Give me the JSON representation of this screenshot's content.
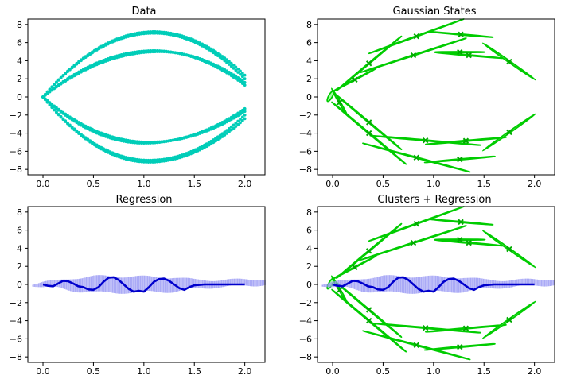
{
  "chart_data": [
    {
      "type": "scatter",
      "title": "Data",
      "xlabel": "",
      "ylabel": "",
      "xlim": [
        -0.15,
        2.2
      ],
      "ylim": [
        -8.6,
        8.6
      ],
      "xticks": [
        0.0,
        0.5,
        1.0,
        1.5,
        2.0
      ],
      "yticks": [
        -8,
        -6,
        -4,
        -2,
        0,
        2,
        4,
        6,
        8
      ],
      "colors": {
        "points": "#00cdb8"
      },
      "curves": [
        {
          "amplitude": 7.2,
          "peak_x": 1.1,
          "end_y": 2.4
        },
        {
          "amplitude": 7.05,
          "peak_x": 1.1,
          "end_y": 2.0
        },
        {
          "amplitude": 5.1,
          "peak_x": 1.1,
          "end_y": 1.3
        },
        {
          "amplitude": 5.0,
          "peak_x": 1.15,
          "end_y": 1.6
        },
        {
          "amplitude": -7.2,
          "peak_x": 1.05,
          "end_y": -2.4
        },
        {
          "amplitude": -7.0,
          "peak_x": 1.05,
          "end_y": -2.0
        },
        {
          "amplitude": -5.1,
          "peak_x": 1.0,
          "end_y": -1.3
        },
        {
          "amplitude": -5.0,
          "peak_x": 1.05,
          "end_y": -1.6
        }
      ]
    },
    {
      "type": "scatter",
      "title": "Gaussian States",
      "xlabel": "",
      "ylabel": "",
      "xlim": [
        -0.15,
        2.2
      ],
      "ylim": [
        -8.6,
        8.6
      ],
      "xticks": [
        0.0,
        0.5,
        1.0,
        1.5,
        2.0
      ],
      "yticks": [
        -8,
        -6,
        -4,
        -2,
        0,
        2,
        4,
        6,
        8
      ],
      "colors": {
        "stroke": "#00cc00",
        "fill": "#9cff9c",
        "marker": "#00aa00"
      },
      "ellipses": [
        {
          "cx": -0.02,
          "cy": 0.1,
          "rx": 0.06,
          "ry": 0.2,
          "angle": 60
        },
        {
          "cx": 0.07,
          "cy": -0.6,
          "rx": 0.16,
          "ry": 0.09,
          "angle": -60,
          "marker": true
        },
        {
          "cx": 0.22,
          "cy": 1.9,
          "rx": 0.24,
          "ry": 0.05,
          "angle": 28,
          "marker": true
        },
        {
          "cx": 0.36,
          "cy": 3.7,
          "rx": 0.42,
          "ry": 0.06,
          "angle": 40,
          "marker": true
        },
        {
          "cx": 0.36,
          "cy": -2.8,
          "rx": 0.42,
          "ry": 0.06,
          "angle": -40,
          "marker": true
        },
        {
          "cx": 0.36,
          "cy": -4.0,
          "rx": 0.48,
          "ry": 0.06,
          "angle": -40,
          "marker": true
        },
        {
          "cx": 0.83,
          "cy": 6.7,
          "rx": 0.5,
          "ry": 0.05,
          "angle": 20,
          "marker": true
        },
        {
          "cx": 0.8,
          "cy": 4.6,
          "rx": 0.55,
          "ry": 0.05,
          "angle": 18,
          "marker": true
        },
        {
          "cx": 0.92,
          "cy": -4.8,
          "rx": 0.55,
          "ry": 0.05,
          "angle": -5,
          "marker": true
        },
        {
          "cx": 0.83,
          "cy": -6.7,
          "rx": 0.55,
          "ry": 0.05,
          "angle": -15,
          "marker": true
        },
        {
          "cx": 1.27,
          "cy": 6.9,
          "rx": 0.32,
          "ry": 0.05,
          "angle": -5,
          "marker": true
        },
        {
          "cx": 1.26,
          "cy": 4.95,
          "rx": 0.25,
          "ry": 0.05,
          "angle": 0,
          "marker": true
        },
        {
          "cx": 1.32,
          "cy": -4.85,
          "rx": 0.4,
          "ry": 0.05,
          "angle": 5,
          "marker": true
        },
        {
          "cx": 1.26,
          "cy": -6.9,
          "rx": 0.35,
          "ry": 0.05,
          "angle": 5,
          "marker": true
        },
        {
          "cx": 1.35,
          "cy": 4.6,
          "rx": 0.34,
          "ry": 0.05,
          "angle": -5,
          "marker": true
        },
        {
          "cx": 1.75,
          "cy": 3.9,
          "rx": 0.32,
          "ry": 0.09,
          "angle": -35,
          "marker": true
        },
        {
          "cx": 1.75,
          "cy": -3.9,
          "rx": 0.32,
          "ry": 0.09,
          "angle": 35,
          "marker": true
        }
      ]
    },
    {
      "type": "line",
      "title": "Regression",
      "xlabel": "",
      "ylabel": "",
      "xlim": [
        -0.15,
        2.2
      ],
      "ylim": [
        -8.6,
        8.6
      ],
      "xticks": [
        0.0,
        0.5,
        1.0,
        1.5,
        2.0
      ],
      "yticks": [
        -8,
        -6,
        -4,
        -2,
        0,
        2,
        4,
        6,
        8
      ],
      "colors": {
        "mean": "#0000cc",
        "band": "#9b9bf5"
      },
      "mean_line": {
        "x": [
          0.0,
          0.05,
          0.1,
          0.15,
          0.2,
          0.25,
          0.3,
          0.35,
          0.4,
          0.45,
          0.5,
          0.55,
          0.6,
          0.65,
          0.7,
          0.75,
          0.8,
          0.85,
          0.9,
          0.95,
          1.0,
          1.05,
          1.1,
          1.15,
          1.2,
          1.25,
          1.3,
          1.35,
          1.4,
          1.45,
          1.5,
          1.6,
          1.7,
          1.8,
          1.9,
          2.0
        ],
        "y": [
          0.0,
          -0.15,
          -0.2,
          0.1,
          0.4,
          0.35,
          0.1,
          -0.2,
          -0.3,
          -0.55,
          -0.6,
          -0.3,
          0.3,
          0.75,
          0.8,
          0.5,
          0.0,
          -0.5,
          -0.8,
          -0.7,
          -0.8,
          -0.3,
          0.3,
          0.6,
          0.65,
          0.4,
          0.0,
          -0.4,
          -0.6,
          -0.3,
          -0.1,
          0.0,
          0.0,
          0.0,
          0.0,
          0.0
        ]
      },
      "band": {
        "x": [
          -0.1,
          0.0,
          0.15,
          0.3,
          0.5,
          0.7,
          0.9,
          1.1,
          1.3,
          1.5,
          1.7,
          1.9,
          2.1,
          2.2
        ],
        "lower": [
          -0.1,
          -0.3,
          -0.4,
          -0.7,
          -0.9,
          -0.9,
          -0.9,
          -0.8,
          -0.8,
          -0.5,
          -0.3,
          -0.2,
          -0.1,
          0.0
        ],
        "upper": [
          0.1,
          0.3,
          0.4,
          0.7,
          0.9,
          0.9,
          0.9,
          0.8,
          0.8,
          0.5,
          0.5,
          0.5,
          0.6,
          0.6
        ]
      }
    },
    {
      "type": "scatter",
      "title": "Clusters + Regression",
      "xlabel": "",
      "ylabel": "",
      "xlim": [
        -0.15,
        2.2
      ],
      "ylim": [
        -8.6,
        8.6
      ],
      "xticks": [
        0.0,
        0.5,
        1.0,
        1.5,
        2.0
      ],
      "yticks": [
        -8,
        -6,
        -4,
        -2,
        0,
        2,
        4,
        6,
        8
      ],
      "colors": {
        "stroke": "#00cc00",
        "fill": "#9cff9c",
        "marker": "#00aa00",
        "mean": "#0000cc",
        "band": "#9b9bf5"
      }
    }
  ]
}
